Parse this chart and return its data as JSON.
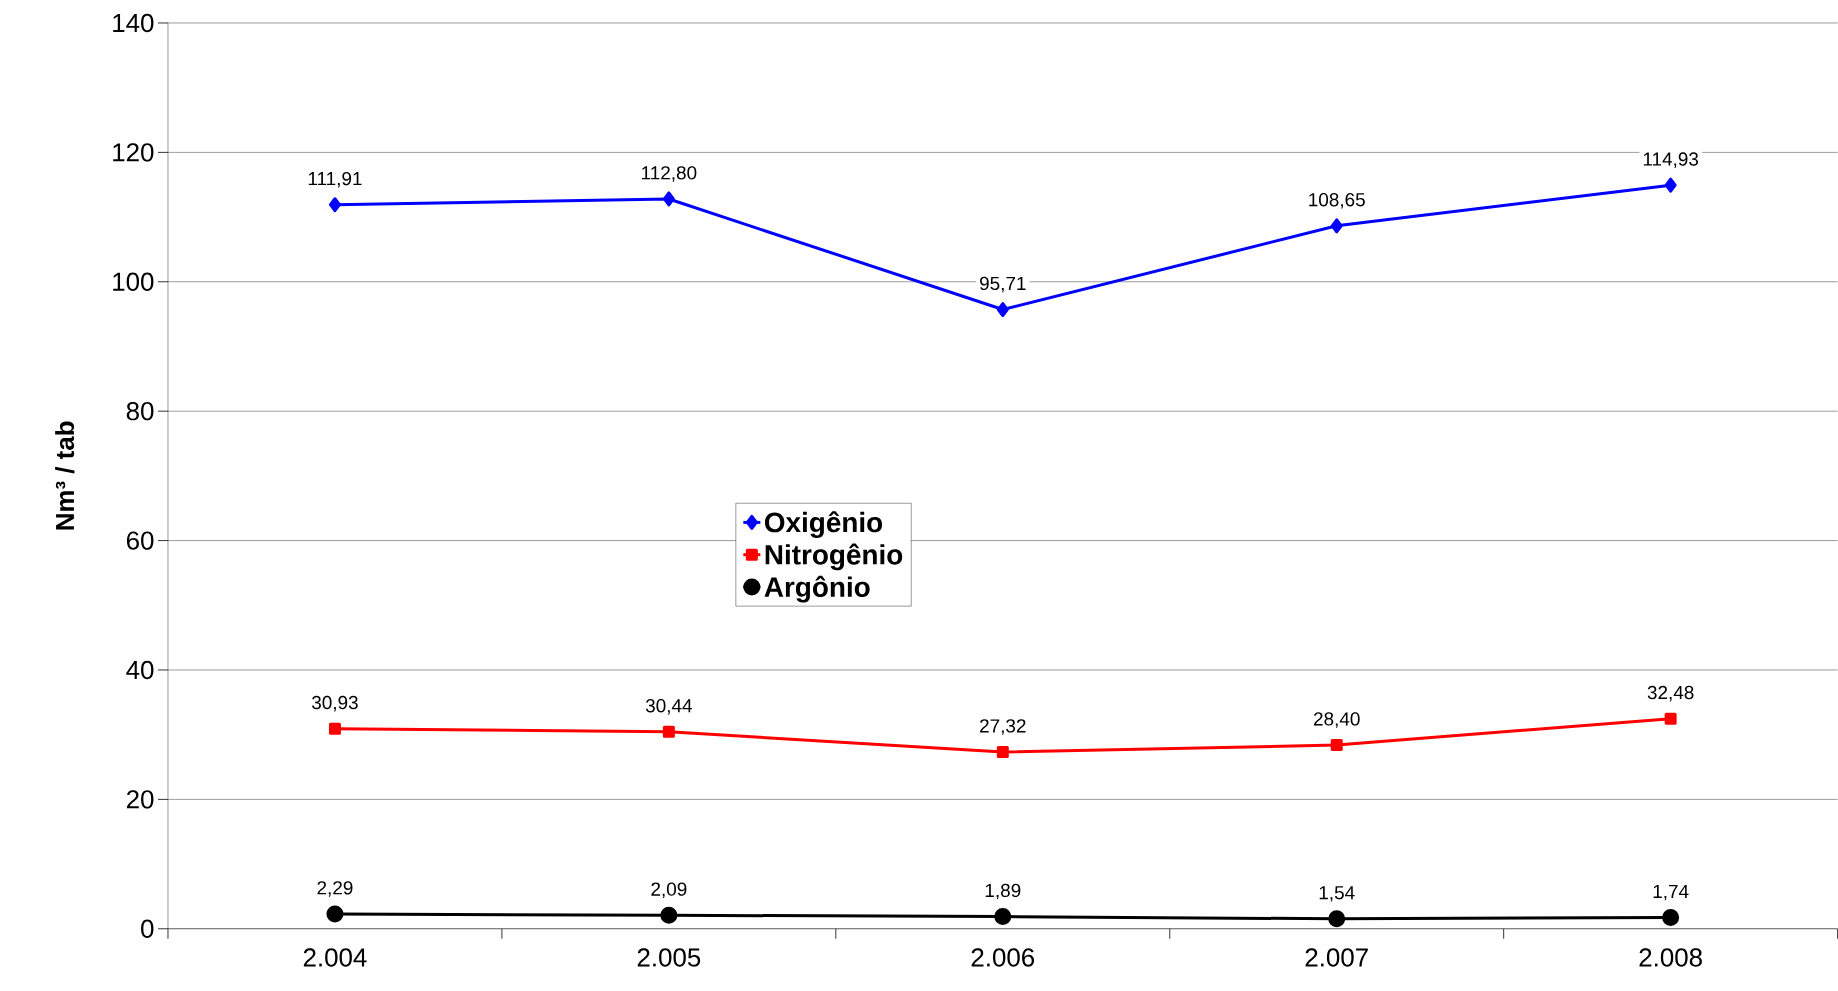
{
  "chart_data": {
    "type": "line",
    "ylabel": "Nm³ / tab",
    "categories": [
      "2.004",
      "2.005",
      "2.006",
      "2.007",
      "2.008"
    ],
    "ylim": [
      0,
      140
    ],
    "yticks": [
      0,
      20,
      40,
      60,
      80,
      100,
      120,
      140
    ],
    "grid": "y",
    "legend": "center",
    "series": [
      {
        "name": "Oxigênio",
        "color": "#0000ff",
        "marker": "diamond",
        "values": [
          111.91,
          112.8,
          95.71,
          108.65,
          114.93
        ],
        "value_labels": [
          "111,91",
          "112,80",
          "95,71",
          "108,65",
          "114,93"
        ]
      },
      {
        "name": "Nitrogênio",
        "color": "#ff0000",
        "marker": "square",
        "values": [
          30.93,
          30.44,
          27.32,
          28.4,
          32.48
        ],
        "value_labels": [
          "30,93",
          "30,44",
          "27,32",
          "28,40",
          "32,48"
        ]
      },
      {
        "name": "Argônio",
        "color": "#000000",
        "marker": "circle",
        "values": [
          2.29,
          2.09,
          1.89,
          1.54,
          1.74
        ],
        "value_labels": [
          "2,29",
          "2,09",
          "1,89",
          "1,54",
          "1,74"
        ]
      }
    ]
  }
}
